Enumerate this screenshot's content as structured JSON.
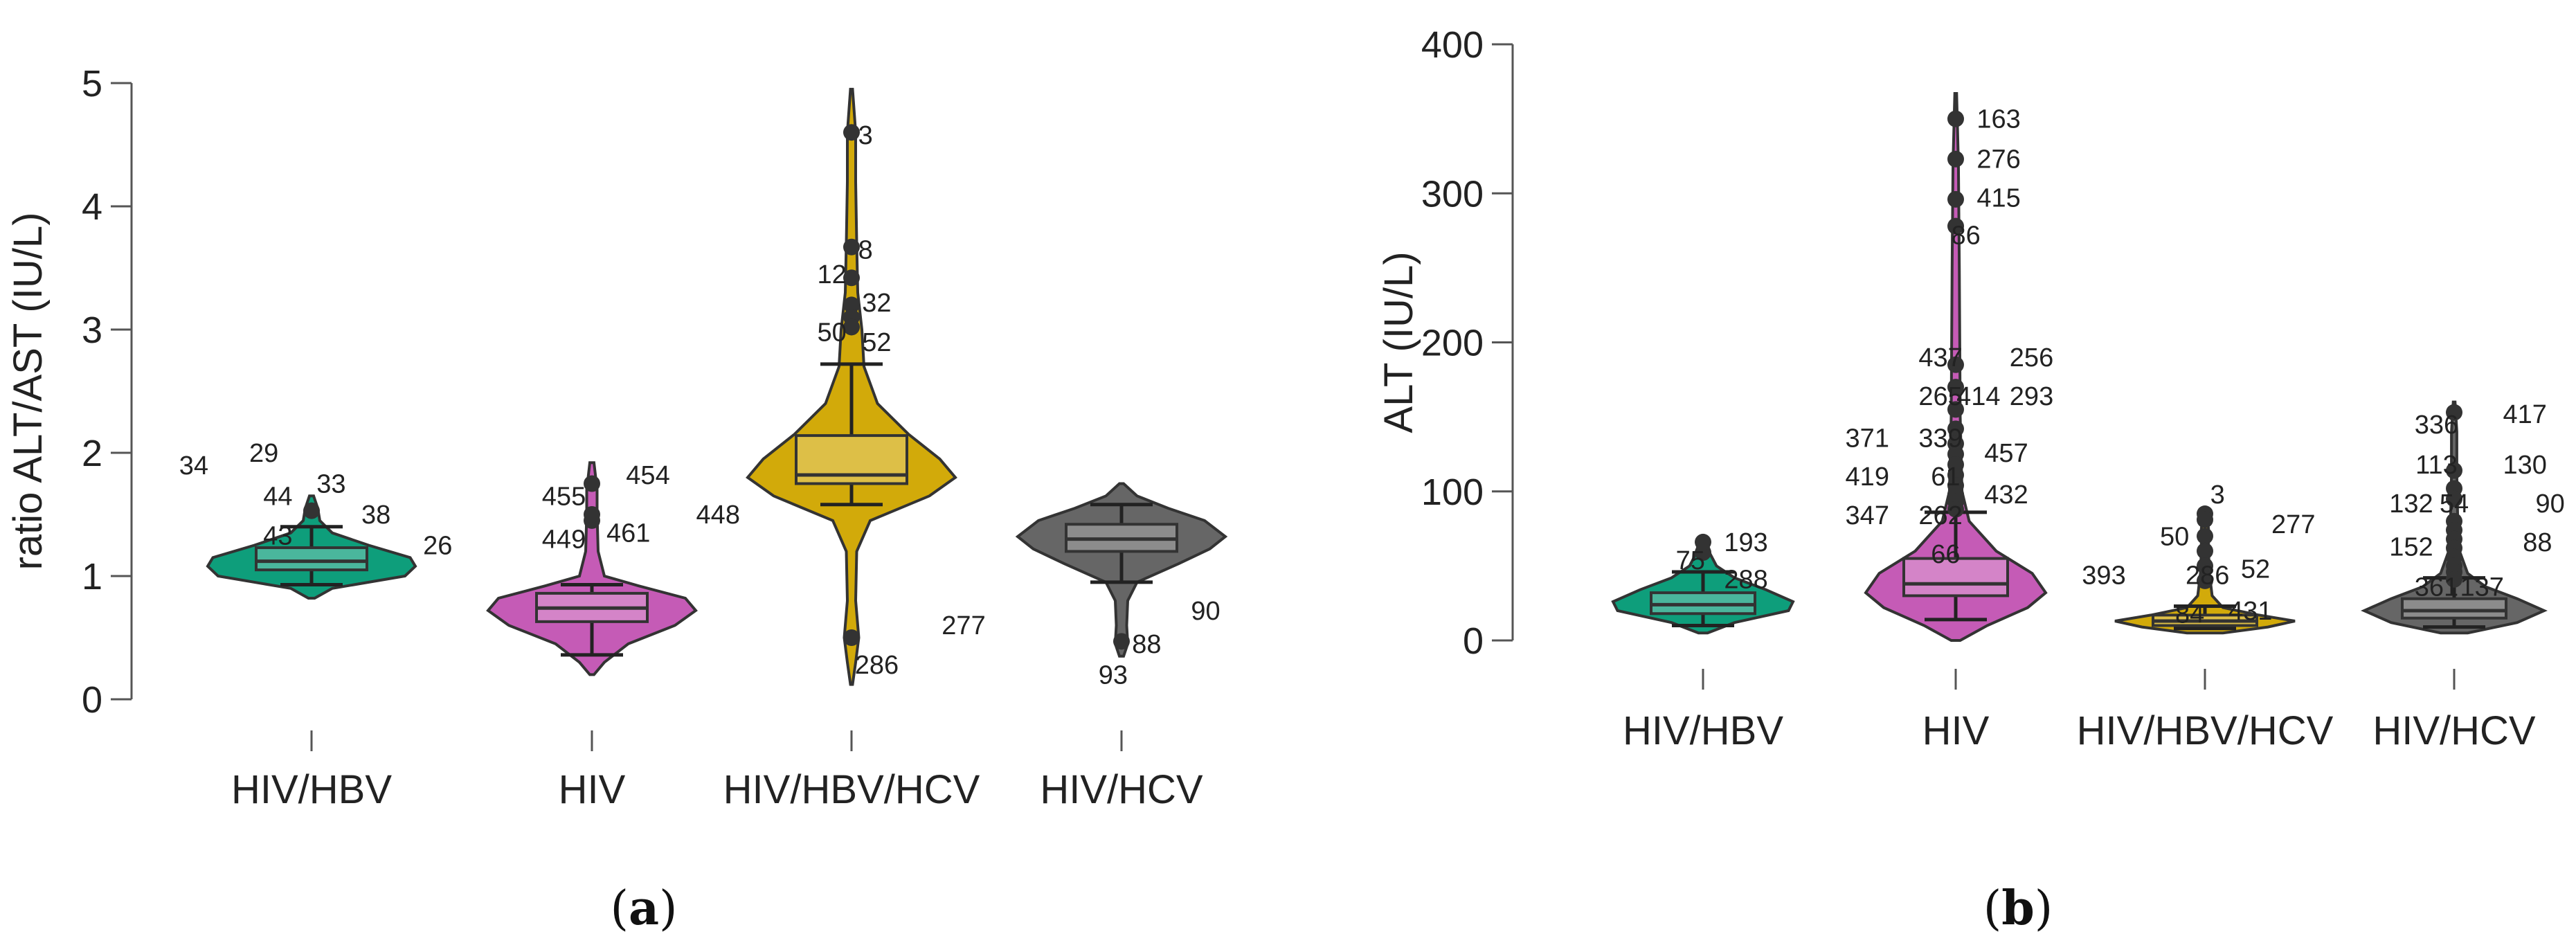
{
  "colors": {
    "HIV/HBV": "#0e9e7b",
    "HIV": "#c55bb6",
    "HIV/HBV/HCV": "#d2aa0a",
    "HIV/HCV": "#666666"
  },
  "chart_data": [
    {
      "type": "violin",
      "panel_label": "a",
      "ylabel": "ratio ALT/AST (IU/L)",
      "ylim": [
        0,
        5
      ],
      "yticks": [
        0,
        1,
        2,
        3,
        4,
        5
      ],
      "categories": [
        "HIV/HBV",
        "HIV",
        "HIV/HBV/HCV",
        "HIV/HCV"
      ],
      "groups": [
        {
          "name": "HIV/HBV",
          "box": {
            "q1": 1.05,
            "median": 1.12,
            "q3": 1.23,
            "whisker_low": 0.93,
            "whisker_high": 1.4
          },
          "violin": {
            "min": 0.82,
            "max": 1.65,
            "profile": [
              [
                0.82,
                0.03
              ],
              [
                0.9,
                0.2
              ],
              [
                1.0,
                0.9
              ],
              [
                1.08,
                1.0
              ],
              [
                1.15,
                0.95
              ],
              [
                1.25,
                0.55
              ],
              [
                1.35,
                0.2
              ],
              [
                1.45,
                0.08
              ],
              [
                1.55,
                0.06
              ],
              [
                1.65,
                0.02
              ]
            ]
          },
          "outliers": [
            1.53
          ],
          "annotations": [
            {
              "text": "34",
              "y": 1.9,
              "dx": -0.42
            },
            {
              "text": "29",
              "y": 2.0,
              "dx": -0.17
            },
            {
              "text": "44",
              "y": 1.65,
              "dx": -0.12
            },
            {
              "text": "33",
              "y": 1.75,
              "dx": 0.07
            },
            {
              "text": "38",
              "y": 1.5,
              "dx": 0.23
            },
            {
              "text": "43",
              "y": 1.33,
              "dx": -0.12
            },
            {
              "text": "26",
              "y": 1.25,
              "dx": 0.45
            }
          ]
        },
        {
          "name": "HIV",
          "box": {
            "q1": 0.63,
            "median": 0.74,
            "q3": 0.86,
            "whisker_low": 0.36,
            "whisker_high": 0.93
          },
          "violin": {
            "min": 0.2,
            "max": 1.92,
            "profile": [
              [
                0.2,
                0.02
              ],
              [
                0.3,
                0.12
              ],
              [
                0.45,
                0.35
              ],
              [
                0.6,
                0.8
              ],
              [
                0.72,
                1.0
              ],
              [
                0.82,
                0.9
              ],
              [
                0.92,
                0.45
              ],
              [
                1.0,
                0.12
              ],
              [
                1.2,
                0.06
              ],
              [
                1.5,
                0.05
              ],
              [
                1.7,
                0.05
              ],
              [
                1.92,
                0.02
              ]
            ]
          },
          "outliers": [
            1.45,
            1.5,
            1.75
          ],
          "annotations": [
            {
              "text": "455",
              "y": 1.65,
              "dx": -0.1
            },
            {
              "text": "454",
              "y": 1.82,
              "dx": 0.2
            },
            {
              "text": "449",
              "y": 1.3,
              "dx": -0.1
            },
            {
              "text": "461",
              "y": 1.35,
              "dx": 0.13
            },
            {
              "text": "448",
              "y": 1.5,
              "dx": 0.45
            }
          ]
        },
        {
          "name": "HIV/HBV/HCV",
          "box": {
            "q1": 1.75,
            "median": 1.82,
            "q3": 2.14,
            "whisker_low": 1.58,
            "whisker_high": 2.72
          },
          "violin": {
            "min": 0.12,
            "max": 4.95,
            "profile": [
              [
                0.12,
                0.01
              ],
              [
                0.3,
                0.04
              ],
              [
                0.5,
                0.07
              ],
              [
                0.8,
                0.04
              ],
              [
                1.2,
                0.05
              ],
              [
                1.45,
                0.18
              ],
              [
                1.65,
                0.75
              ],
              [
                1.8,
                1.0
              ],
              [
                1.95,
                0.85
              ],
              [
                2.15,
                0.55
              ],
              [
                2.4,
                0.25
              ],
              [
                2.7,
                0.12
              ],
              [
                3.0,
                0.1
              ],
              [
                3.3,
                0.06
              ],
              [
                3.7,
                0.05
              ],
              [
                4.2,
                0.04
              ],
              [
                4.6,
                0.04
              ],
              [
                4.95,
                0.01
              ]
            ]
          },
          "outliers": [
            4.6,
            3.67,
            3.42,
            3.2,
            3.1,
            3.02,
            0.5
          ],
          "annotations": [
            {
              "text": "3",
              "y": 4.58,
              "dx": 0.05
            },
            {
              "text": "8",
              "y": 3.65,
              "dx": 0.05
            },
            {
              "text": "12",
              "y": 3.45,
              "dx": -0.07
            },
            {
              "text": "32",
              "y": 3.22,
              "dx": 0.09
            },
            {
              "text": "50",
              "y": 2.98,
              "dx": -0.07
            },
            {
              "text": "52",
              "y": 2.9,
              "dx": 0.09
            },
            {
              "text": "286",
              "y": 0.28,
              "dx": 0.09
            },
            {
              "text": "277",
              "y": 0.6,
              "dx": 0.4
            }
          ]
        },
        {
          "name": "HIV/HCV",
          "box": {
            "q1": 1.2,
            "median": 1.3,
            "q3": 1.42,
            "whisker_low": 0.95,
            "whisker_high": 1.58
          },
          "violin": {
            "min": 0.35,
            "max": 1.75,
            "profile": [
              [
                0.35,
                0.02
              ],
              [
                0.45,
                0.06
              ],
              [
                0.6,
                0.05
              ],
              [
                0.8,
                0.06
              ],
              [
                0.95,
                0.15
              ],
              [
                1.1,
                0.55
              ],
              [
                1.22,
                0.85
              ],
              [
                1.32,
                1.0
              ],
              [
                1.45,
                0.8
              ],
              [
                1.55,
                0.45
              ],
              [
                1.65,
                0.15
              ],
              [
                1.75,
                0.02
              ]
            ]
          },
          "outliers": [
            0.47
          ],
          "annotations": [
            {
              "text": "93",
              "y": 0.2,
              "dx": -0.03
            },
            {
              "text": "88",
              "y": 0.45,
              "dx": 0.09
            },
            {
              "text": "90",
              "y": 0.72,
              "dx": 0.3
            }
          ]
        }
      ]
    },
    {
      "type": "violin",
      "panel_label": "b",
      "ylabel": "ALT (IU/L)",
      "ylim": [
        0,
        400
      ],
      "yticks": [
        0,
        100,
        200,
        300,
        400
      ],
      "categories": [
        "HIV/HBV",
        "HIV",
        "HIV/HBV/HCV",
        "HIV/HCV"
      ],
      "groups": [
        {
          "name": "HIV/HBV",
          "box": {
            "q1": 18,
            "median": 24,
            "q3": 32,
            "whisker_low": 10,
            "whisker_high": 46
          },
          "violin": {
            "min": 5,
            "max": 70,
            "profile": [
              [
                5,
                0.05
              ],
              [
                12,
                0.35
              ],
              [
                20,
                0.95
              ],
              [
                26,
                1.0
              ],
              [
                34,
                0.7
              ],
              [
                42,
                0.35
              ],
              [
                50,
                0.15
              ],
              [
                58,
                0.08
              ],
              [
                65,
                0.05
              ],
              [
                70,
                0.02
              ]
            ]
          },
          "outliers": [
            59,
            66
          ],
          "annotations": [
            {
              "text": "75",
              "y": 54,
              "dx": -0.05
            },
            {
              "text": "193",
              "y": 66,
              "dx": 0.17
            },
            {
              "text": "288",
              "y": 41,
              "dx": 0.17
            }
          ]
        },
        {
          "name": "HIV",
          "box": {
            "q1": 30,
            "median": 38,
            "q3": 55,
            "whisker_low": 14,
            "whisker_high": 86
          },
          "violin": {
            "min": 0,
            "max": 367,
            "profile": [
              [
                0,
                0.05
              ],
              [
                10,
                0.35
              ],
              [
                22,
                0.8
              ],
              [
                32,
                1.0
              ],
              [
                45,
                0.85
              ],
              [
                60,
                0.45
              ],
              [
                80,
                0.15
              ],
              [
                100,
                0.07
              ],
              [
                150,
                0.05
              ],
              [
                250,
                0.04
              ],
              [
                320,
                0.03
              ],
              [
                367,
                0.01
              ]
            ]
          },
          "outliers": [
            350,
            323,
            296,
            278,
            185,
            170,
            155,
            142,
            132,
            125,
            118,
            111,
            104,
            98,
            93,
            88
          ],
          "annotations": [
            {
              "text": "163",
              "y": 350,
              "dx": 0.17
            },
            {
              "text": "276",
              "y": 323,
              "dx": 0.17
            },
            {
              "text": "415",
              "y": 297,
              "dx": 0.17
            },
            {
              "text": "86",
              "y": 272,
              "dx": 0.04
            },
            {
              "text": "437",
              "y": 190,
              "dx": -0.06
            },
            {
              "text": "256",
              "y": 190,
              "dx": 0.3
            },
            {
              "text": "265",
              "y": 164,
              "dx": -0.06
            },
            {
              "text": "414",
              "y": 164,
              "dx": 0.09
            },
            {
              "text": "293",
              "y": 164,
              "dx": 0.3
            },
            {
              "text": "371",
              "y": 136,
              "dx": -0.35
            },
            {
              "text": "339",
              "y": 136,
              "dx": -0.06
            },
            {
              "text": "457",
              "y": 126,
              "dx": 0.2
            },
            {
              "text": "419",
              "y": 110,
              "dx": -0.35
            },
            {
              "text": "61",
              "y": 110,
              "dx": -0.04
            },
            {
              "text": "432",
              "y": 98,
              "dx": 0.2
            },
            {
              "text": "347",
              "y": 84,
              "dx": -0.35
            },
            {
              "text": "262",
              "y": 84,
              "dx": -0.06
            },
            {
              "text": "66",
              "y": 58,
              "dx": -0.04
            }
          ]
        },
        {
          "name": "HIV/HBV/HCV",
          "box": {
            "q1": 10,
            "median": 13,
            "q3": 17,
            "whisker_low": 8,
            "whisker_high": 23
          },
          "violin": {
            "min": 5,
            "max": 85,
            "profile": [
              [
                5,
                0.2
              ],
              [
                9,
                0.7
              ],
              [
                13,
                1.0
              ],
              [
                17,
                0.6
              ],
              [
                22,
                0.2
              ],
              [
                30,
                0.08
              ],
              [
                45,
                0.05
              ],
              [
                60,
                0.04
              ],
              [
                75,
                0.04
              ],
              [
                85,
                0.02
              ]
            ]
          },
          "outliers": [
            85,
            81,
            70,
            60,
            50,
            40
          ],
          "annotations": [
            {
              "text": "3",
              "y": 98,
              "dx": 0.05
            },
            {
              "text": "277",
              "y": 78,
              "dx": 0.35
            },
            {
              "text": "50",
              "y": 70,
              "dx": -0.12
            },
            {
              "text": "52",
              "y": 48,
              "dx": 0.2
            },
            {
              "text": "393",
              "y": 44,
              "dx": -0.4
            },
            {
              "text": "286",
              "y": 44,
              "dx": 0.01
            },
            {
              "text": "84",
              "y": 18,
              "dx": -0.06
            },
            {
              "text": "431",
              "y": 20,
              "dx": 0.18
            }
          ]
        },
        {
          "name": "HIV/HCV",
          "box": {
            "q1": 15,
            "median": 20,
            "q3": 28,
            "whisker_low": 9,
            "whisker_high": 42
          },
          "violin": {
            "min": 5,
            "max": 160,
            "profile": [
              [
                5,
                0.15
              ],
              [
                12,
                0.7
              ],
              [
                20,
                1.0
              ],
              [
                28,
                0.7
              ],
              [
                36,
                0.35
              ],
              [
                45,
                0.15
              ],
              [
                60,
                0.06
              ],
              [
                80,
                0.04
              ],
              [
                110,
                0.03
              ],
              [
                140,
                0.03
              ],
              [
                160,
                0.01
              ]
            ]
          },
          "outliers": [
            153,
            114,
            102,
            95,
            80,
            74,
            68,
            62,
            56,
            50,
            46,
            41
          ],
          "annotations": [
            {
              "text": "336",
              "y": 145,
              "dx": -0.07
            },
            {
              "text": "417",
              "y": 152,
              "dx": 0.28
            },
            {
              "text": "113",
              "y": 118,
              "dx": -0.07
            },
            {
              "text": "130",
              "y": 118,
              "dx": 0.28
            },
            {
              "text": "132",
              "y": 92,
              "dx": -0.17
            },
            {
              "text": "54",
              "y": 92,
              "dx": 0.0
            },
            {
              "text": "90",
              "y": 92,
              "dx": 0.38
            },
            {
              "text": "152",
              "y": 63,
              "dx": -0.17
            },
            {
              "text": "88",
              "y": 66,
              "dx": 0.33
            },
            {
              "text": "361",
              "y": 36,
              "dx": -0.07
            },
            {
              "text": "137",
              "y": 36,
              "dx": 0.11
            }
          ]
        }
      ]
    }
  ]
}
